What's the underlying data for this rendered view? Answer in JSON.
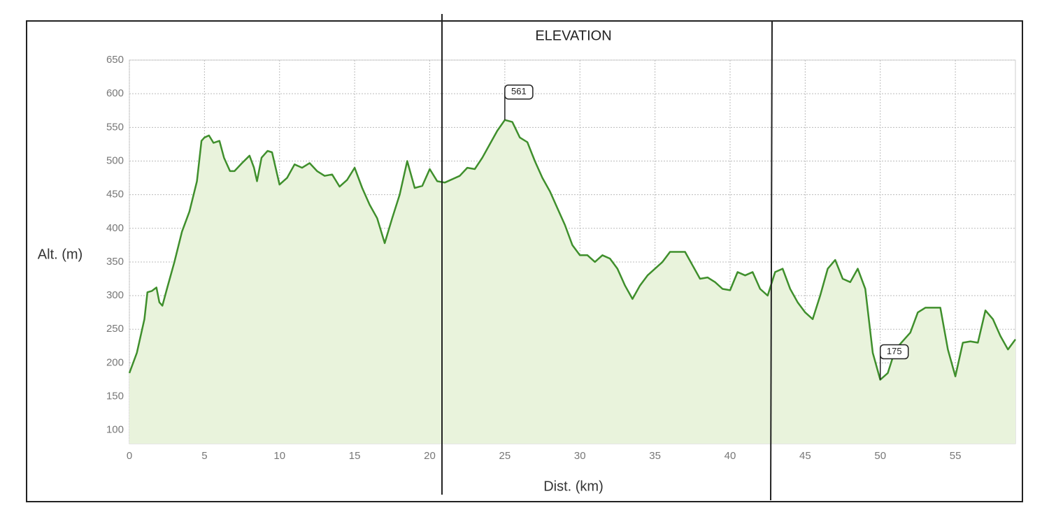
{
  "chart_data": {
    "type": "area",
    "title": "ELEVATION",
    "x_label": "Dist. (km)",
    "y_label": "Alt. (m)",
    "x": [
      0,
      0.5,
      1,
      1.2,
      1.5,
      1.8,
      2,
      2.2,
      2.5,
      3,
      3.5,
      4,
      4.5,
      4.8,
      5,
      5.3,
      5.6,
      6,
      6.3,
      6.7,
      7,
      7.5,
      8,
      8.3,
      8.5,
      8.8,
      9.2,
      9.5,
      10,
      10.5,
      11,
      11.5,
      12,
      12.5,
      13,
      13.5,
      14,
      14.5,
      15,
      15.5,
      16,
      16.5,
      17,
      17.5,
      18,
      18.5,
      19,
      19.5,
      20,
      20.5,
      21,
      22,
      22.5,
      23,
      23.5,
      24,
      24.5,
      25,
      25.5,
      26,
      26.5,
      27,
      27.5,
      28,
      28.5,
      29,
      29.5,
      30,
      30.5,
      31,
      31.5,
      32,
      32.5,
      33,
      33.5,
      34,
      34.5,
      35,
      35.5,
      36,
      37,
      37.5,
      38,
      38.5,
      39,
      39.5,
      40,
      40.5,
      41,
      41.5,
      42,
      42.5,
      43,
      43.5,
      44,
      44.5,
      45,
      45.5,
      46,
      46.5,
      47,
      47.5,
      48,
      48.5,
      49,
      49.5,
      50,
      50.5,
      51,
      52,
      52.5,
      53,
      54,
      54.5,
      55,
      55.5,
      56,
      56.5,
      57,
      57.5,
      58,
      58.5,
      59
    ],
    "values": [
      185,
      215,
      265,
      305,
      307,
      312,
      290,
      285,
      310,
      350,
      395,
      425,
      470,
      530,
      535,
      538,
      527,
      530,
      505,
      485,
      485,
      497,
      508,
      490,
      470,
      505,
      515,
      513,
      465,
      475,
      495,
      490,
      497,
      485,
      478,
      480,
      462,
      472,
      490,
      460,
      435,
      415,
      378,
      415,
      450,
      500,
      460,
      463,
      488,
      470,
      468,
      478,
      490,
      488,
      505,
      525,
      545,
      561,
      558,
      535,
      528,
      500,
      475,
      455,
      430,
      405,
      375,
      360,
      360,
      350,
      360,
      355,
      340,
      315,
      295,
      315,
      330,
      340,
      350,
      365,
      365,
      345,
      325,
      327,
      320,
      310,
      308,
      335,
      330,
      335,
      310,
      300,
      335,
      340,
      310,
      290,
      275,
      265,
      300,
      340,
      353,
      325,
      320,
      340,
      310,
      215,
      175,
      185,
      220,
      245,
      275,
      282,
      282,
      220,
      180,
      230,
      232,
      230,
      278,
      265,
      240,
      220,
      235
    ],
    "color": "#3f8f2c",
    "fill": "#e9f3dc",
    "xlim": [
      0,
      59
    ],
    "ylim": [
      80,
      650
    ],
    "xticks": [
      0,
      5,
      10,
      15,
      20,
      25,
      30,
      35,
      40,
      45,
      50,
      55
    ],
    "yticks": [
      100,
      150,
      200,
      250,
      300,
      350,
      400,
      450,
      500,
      550,
      600,
      650
    ],
    "grid": true,
    "annotations": [
      {
        "x": 25,
        "value": 561,
        "text": "561"
      },
      {
        "x": 50,
        "value": 175,
        "text": "175"
      }
    ]
  }
}
